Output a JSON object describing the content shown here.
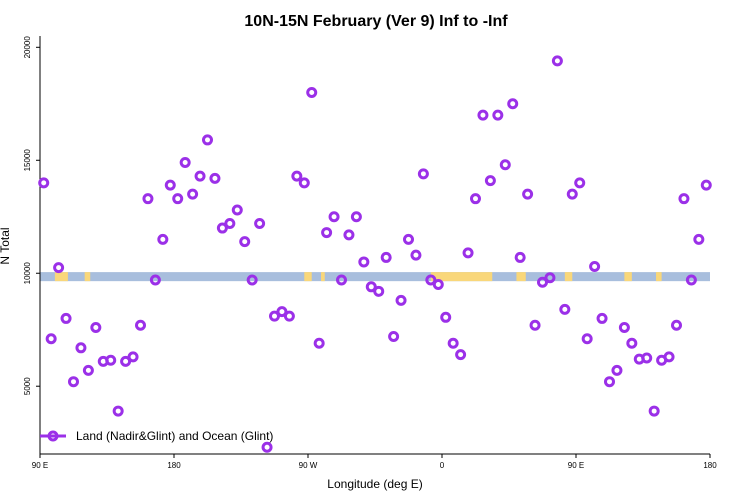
{
  "colors": {
    "marker": "#9b30e8",
    "band_ocean": "#a8bedd",
    "band_land": "#f9d77a",
    "axis": "#000000"
  },
  "chart_data": {
    "type": "scatter",
    "title": "10N-15N February (Ver 9)   Inf to -Inf",
    "xlabel": "Longitude (deg E)",
    "ylabel": "N Total",
    "xlim": [
      90,
      450
    ],
    "ylim": [
      2000,
      20500
    ],
    "x_ticks": [
      {
        "value": 90,
        "label": "90 E"
      },
      {
        "value": 162,
        "label": "180"
      },
      {
        "value": 234,
        "label": "90 W"
      },
      {
        "value": 306,
        "label": "0"
      },
      {
        "value": 378,
        "label": "90 E"
      },
      {
        "value": 450,
        "label": "180"
      }
    ],
    "y_ticks": [
      {
        "value": 5000,
        "label": "5000"
      },
      {
        "value": 10000,
        "label": "10000"
      },
      {
        "value": 15000,
        "label": "15000"
      },
      {
        "value": 20000,
        "label": "20000"
      }
    ],
    "band": {
      "ymin": 9650,
      "ymax": 10050
    },
    "land_segments": [
      [
        98,
        105
      ],
      [
        114,
        117
      ],
      [
        232,
        236
      ],
      [
        241,
        243
      ],
      [
        300,
        333
      ],
      [
        346,
        351
      ],
      [
        372,
        376
      ],
      [
        404,
        408
      ],
      [
        421,
        424
      ]
    ],
    "legend": {
      "label": "Land (Nadir&Glint) and Ocean (Glint)",
      "position": "bottom-left"
    },
    "series": [
      {
        "name": "Land (Nadir&Glint) and Ocean (Glint)",
        "x": [
          92,
          96,
          100,
          104,
          108,
          112,
          116,
          120,
          124,
          128,
          132,
          136,
          140,
          144,
          148,
          152,
          156,
          160,
          164,
          168,
          172,
          176,
          180,
          184,
          188,
          192,
          196,
          200,
          204,
          208,
          212,
          216,
          220,
          224,
          228,
          232,
          236,
          240,
          244,
          248,
          252,
          256,
          260,
          264,
          268,
          272,
          276,
          280,
          284,
          288,
          292,
          296,
          300,
          304,
          308,
          312,
          316,
          320,
          324,
          328,
          332,
          336,
          340,
          344,
          348,
          352,
          356,
          360,
          364,
          368,
          372,
          376,
          380,
          384,
          388,
          392,
          396,
          400,
          404,
          408,
          412,
          416,
          420,
          424,
          428,
          432,
          436,
          440,
          444,
          448
        ],
        "y": [
          14000,
          7100,
          10250,
          8000,
          5200,
          6700,
          5700,
          7600,
          6100,
          6150,
          3900,
          6100,
          6300,
          7700,
          13300,
          9700,
          11500,
          13900,
          13300,
          14900,
          13500,
          14300,
          15900,
          14200,
          12000,
          12200,
          12800,
          11400,
          9700,
          12200,
          2300,
          8100,
          8300,
          8100,
          14300,
          14000,
          18000,
          6900,
          11800,
          12500,
          9700,
          11700,
          12500,
          10500,
          9400,
          9200,
          10700,
          7200,
          8800,
          11500,
          10800,
          14400,
          9700,
          9500,
          8050,
          6900,
          6400,
          10900,
          13300,
          17000,
          14100,
          17000,
          14800,
          17500,
          10700,
          13500,
          7700,
          9600,
          9800,
          19400,
          8400,
          13500,
          14000,
          7100,
          10300,
          8000,
          5200,
          5700,
          7600,
          6900,
          6200,
          6250,
          3900,
          6150,
          6300,
          7700,
          13300,
          9700,
          11500,
          13900
        ]
      }
    ]
  }
}
